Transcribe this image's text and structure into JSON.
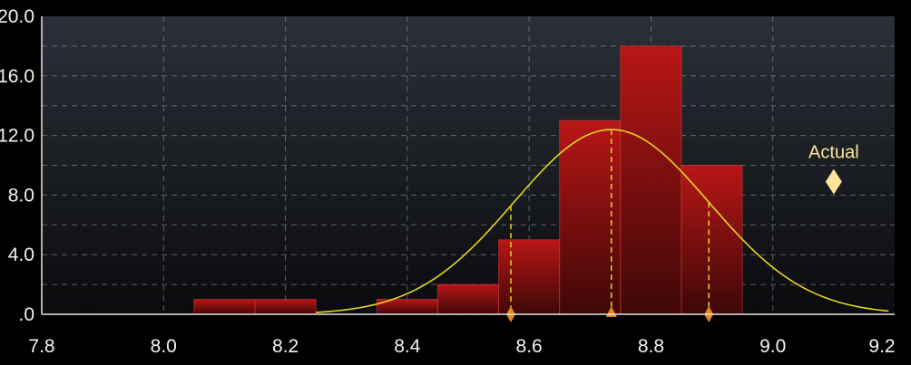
{
  "chart_data": {
    "type": "bar",
    "title": "",
    "xlabel": "",
    "ylabel": "",
    "xlim": [
      7.8,
      9.2
    ],
    "ylim": [
      0,
      20
    ],
    "x_ticks": [
      "7.8",
      "8.0",
      "8.2",
      "8.4",
      "8.6",
      "8.8",
      "9.0",
      "9.2"
    ],
    "y_ticks": [
      ".0",
      "4.0",
      "8.0",
      "12.0",
      "16.0",
      "20.0"
    ],
    "grid": true,
    "bins": [
      {
        "start": 8.05,
        "end": 8.15,
        "value": 1
      },
      {
        "start": 8.15,
        "end": 8.25,
        "value": 1
      },
      {
        "start": 8.35,
        "end": 8.45,
        "value": 1
      },
      {
        "start": 8.45,
        "end": 8.55,
        "value": 2
      },
      {
        "start": 8.55,
        "end": 8.65,
        "value": 5
      },
      {
        "start": 8.65,
        "end": 8.75,
        "value": 13
      },
      {
        "start": 8.75,
        "end": 8.85,
        "value": 18
      },
      {
        "start": 8.85,
        "end": 8.95,
        "value": 10
      }
    ],
    "normal_curve": {
      "mean": 8.735,
      "stdev": 0.16,
      "peak": 12.4,
      "x_range": [
        8.25,
        9.19
      ]
    },
    "markers": [
      {
        "x": 8.57,
        "shape": "diamond"
      },
      {
        "x": 8.735,
        "shape": "triangle"
      },
      {
        "x": 8.895,
        "shape": "diamond"
      }
    ],
    "actual": {
      "label": "Actual",
      "x": 9.1,
      "y": 8.9
    },
    "colors": {
      "plot_top": "#2b3038",
      "plot_bottom": "#0a0b0d",
      "bar_top": "#b81616",
      "bar_bottom": "#3e0707",
      "bar_edge": "#d63a3a",
      "curve": "#e3d61e",
      "marker": "#e08a1e",
      "actual": "#fde49a",
      "grid": "#9aa0a8"
    }
  }
}
